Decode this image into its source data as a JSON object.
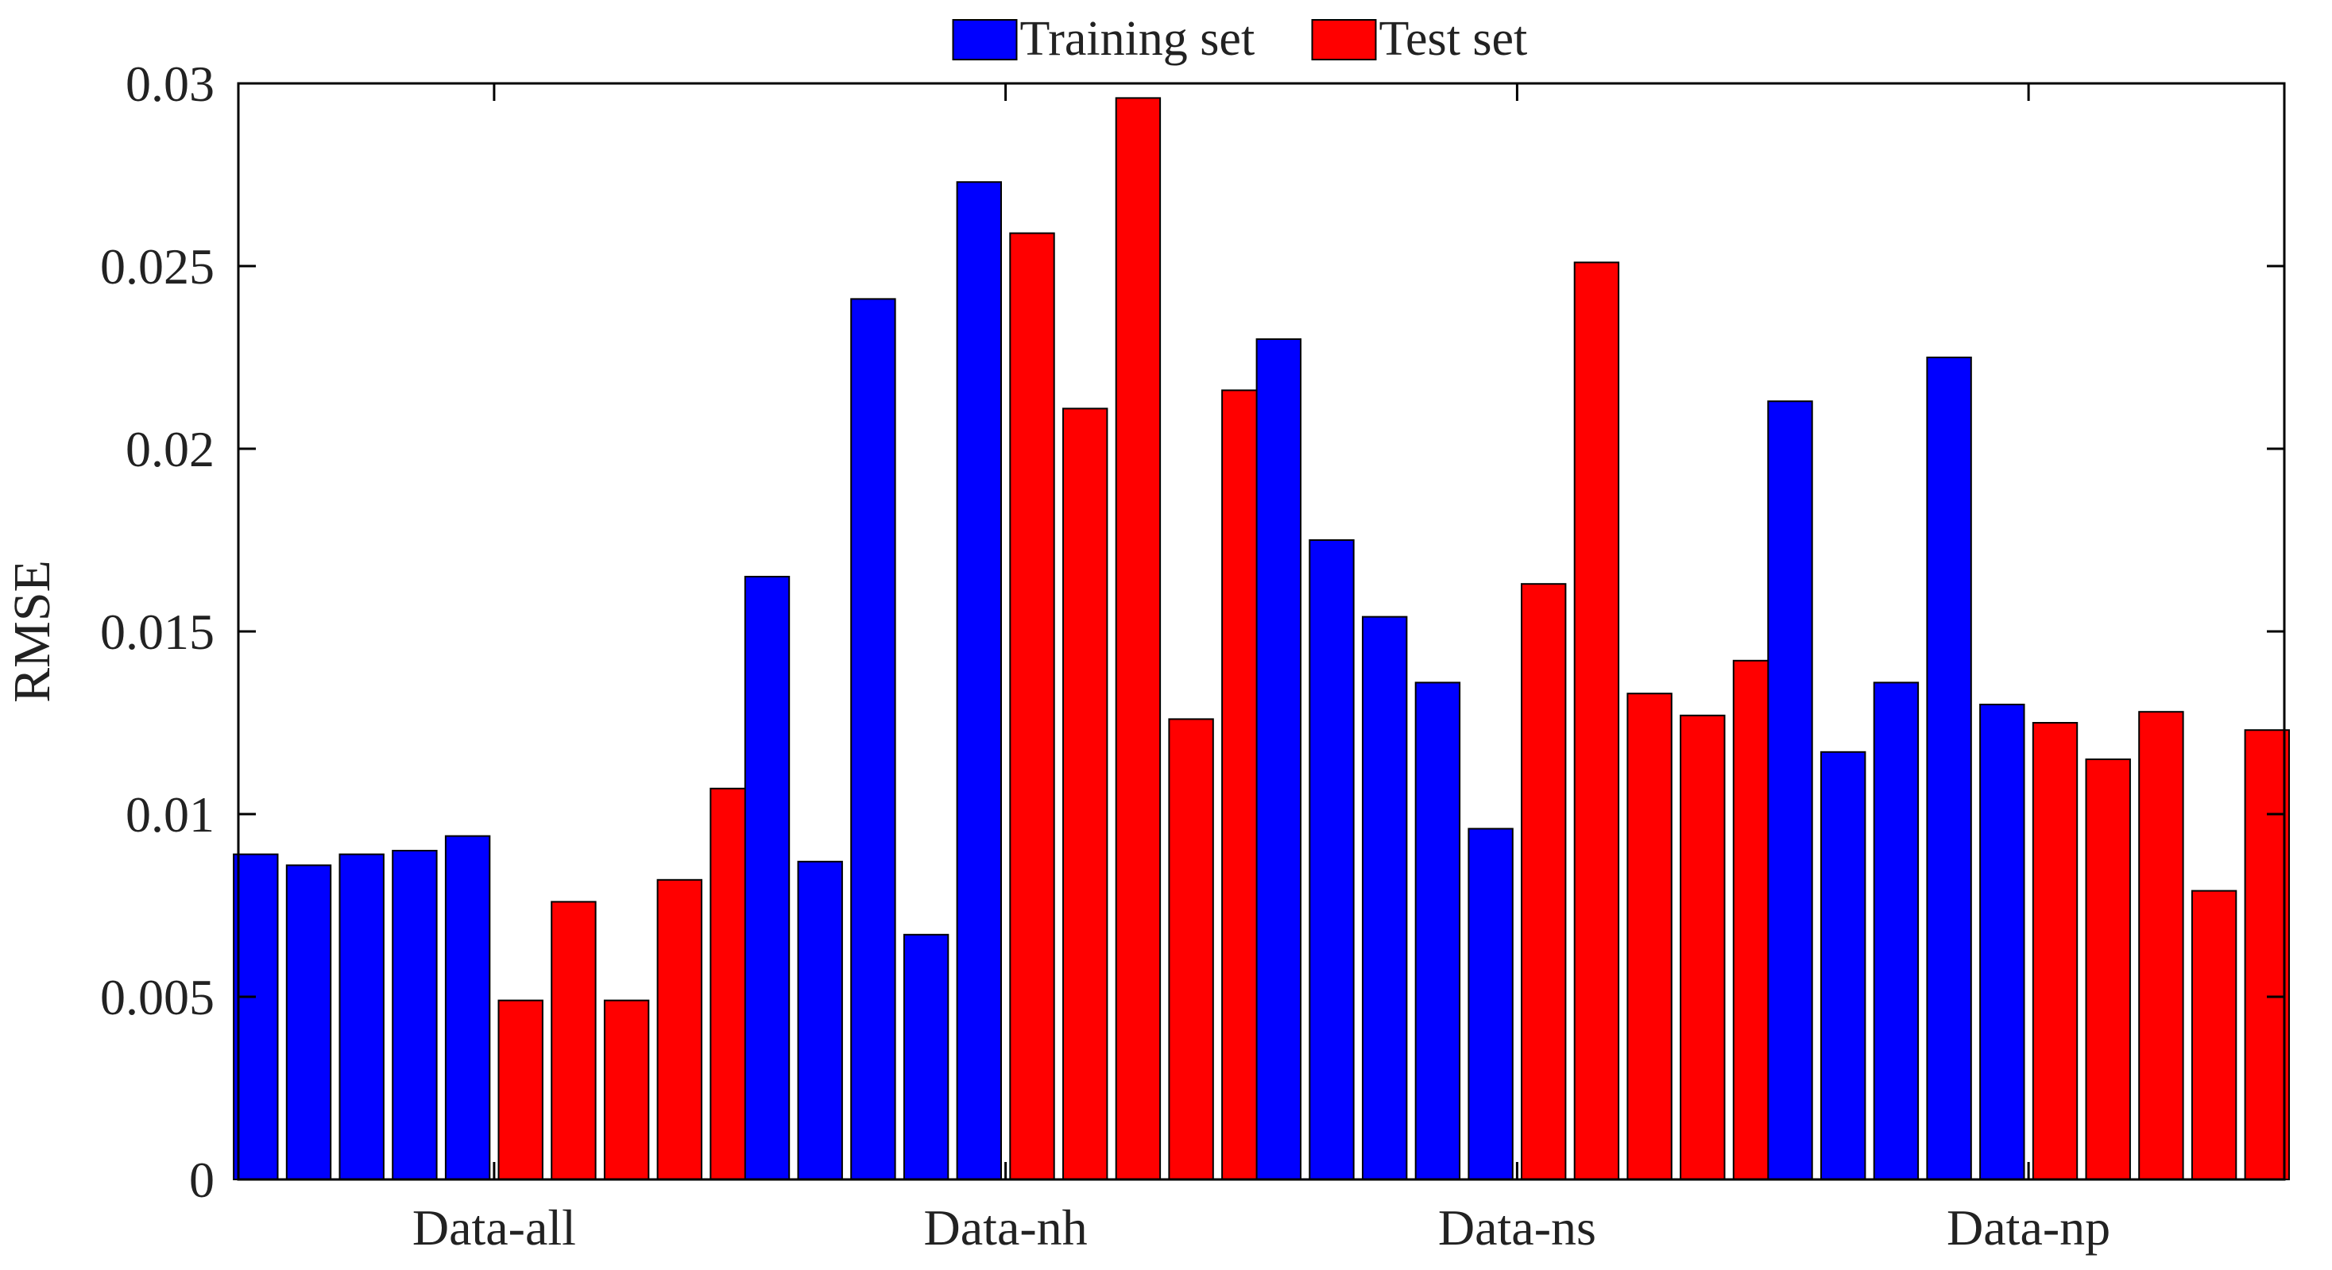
{
  "chart_data": {
    "type": "bar",
    "ylabel": "RMSE",
    "xlabel": "",
    "ylim": [
      0,
      0.03
    ],
    "yticks": [
      0,
      0.005,
      0.01,
      0.015,
      0.02,
      0.025,
      0.03
    ],
    "ytick_labels": [
      "0",
      "0.005",
      "0.01",
      "0.015",
      "0.02",
      "0.025",
      "0.03"
    ],
    "categories": [
      "Data-all",
      "Data-nh",
      "Data-ns",
      "Data-np"
    ],
    "legend": {
      "position": "top-center",
      "entries": [
        {
          "name": "Training set",
          "color": "#0000ff"
        },
        {
          "name": "Test set",
          "color": "#ff0000"
        }
      ]
    },
    "series": [
      {
        "name": "Training set",
        "color": "#0000ff",
        "groups": [
          [
            0.0089,
            0.0086,
            0.0089,
            0.009,
            0.0094
          ],
          [
            0.0165,
            0.0087,
            0.0241,
            0.0067,
            0.0273
          ],
          [
            0.023,
            0.0175,
            0.0154,
            0.0136,
            0.0096
          ],
          [
            0.0213,
            0.0117,
            0.0136,
            0.0225,
            0.013
          ]
        ]
      },
      {
        "name": "Test set",
        "color": "#ff0000",
        "groups": [
          [
            0.0049,
            0.0076,
            0.0049,
            0.0082,
            0.0107
          ],
          [
            0.0259,
            0.0211,
            0.0296,
            0.0126,
            0.0216
          ],
          [
            0.0163,
            0.0251,
            0.0133,
            0.0127,
            0.0142
          ],
          [
            0.0125,
            0.0115,
            0.0128,
            0.0079,
            0.0123
          ]
        ]
      }
    ],
    "grid": false,
    "box": true
  }
}
